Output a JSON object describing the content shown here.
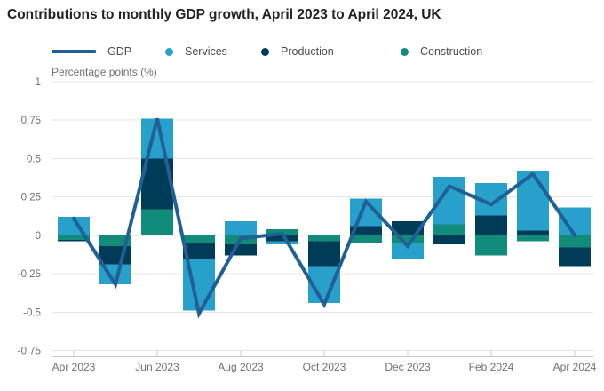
{
  "page": {
    "title": "Contributions to monthly GDP growth, April 2023 to April 2024, UK"
  },
  "chart_data": {
    "type": "bar",
    "stacked": true,
    "line_overlay": true,
    "title": "Contributions to monthly GDP growth, April 2023 to April 2024, UK",
    "ylabel": "Percentage points (%)",
    "xlabel": "",
    "ylim": [
      -0.75,
      1
    ],
    "y_ticks": [
      1,
      0.75,
      0.5,
      0.25,
      0,
      -0.25,
      -0.5,
      -0.75
    ],
    "grid": "horizontal",
    "legend_position": "top",
    "categories": [
      "Apr 2023",
      "May 2023",
      "Jun 2023",
      "Jul 2023",
      "Aug 2023",
      "Sep 2023",
      "Oct 2023",
      "Nov 2023",
      "Dec 2023",
      "Jan 2024",
      "Feb 2024",
      "Mar 2024",
      "Apr 2024"
    ],
    "x_axis_labels": [
      "Apr 2023",
      "Jun 2023",
      "Aug 2023",
      "Oct 2023",
      "Dec 2023",
      "Feb 2024",
      "Apr 2024"
    ],
    "stack_order_from_zero": [
      "Construction",
      "Production",
      "Services"
    ],
    "series": [
      {
        "name": "GDP",
        "type": "line",
        "color": "#206095",
        "values": [
          0.11,
          -0.32,
          0.76,
          -0.51,
          -0.02,
          0.01,
          -0.45,
          0.22,
          -0.07,
          0.32,
          0.2,
          0.4,
          0.0
        ]
      },
      {
        "name": "Services",
        "type": "bar",
        "color": "#27A0CC",
        "values": [
          0.12,
          -0.13,
          0.26,
          -0.34,
          0.09,
          -0.02,
          -0.24,
          0.18,
          -0.1,
          0.31,
          0.21,
          0.39,
          0.18
        ]
      },
      {
        "name": "Production",
        "type": "bar",
        "color": "#003C57",
        "values": [
          -0.01,
          -0.12,
          0.33,
          -0.1,
          -0.07,
          -0.04,
          -0.16,
          0.06,
          0.09,
          -0.06,
          0.13,
          0.03,
          -0.12
        ]
      },
      {
        "name": "Construction",
        "type": "bar",
        "color": "#118C7B",
        "values": [
          -0.03,
          -0.07,
          0.17,
          -0.05,
          -0.06,
          0.04,
          -0.04,
          -0.05,
          -0.05,
          0.07,
          -0.13,
          -0.04,
          -0.08
        ]
      }
    ],
    "colors": {
      "gdp_line": "#206095",
      "services": "#27A0CC",
      "production": "#003C57",
      "construction": "#118C7B",
      "gridline": "#e6e6e6",
      "axis_text": "#707070",
      "title_text": "#222222"
    }
  }
}
